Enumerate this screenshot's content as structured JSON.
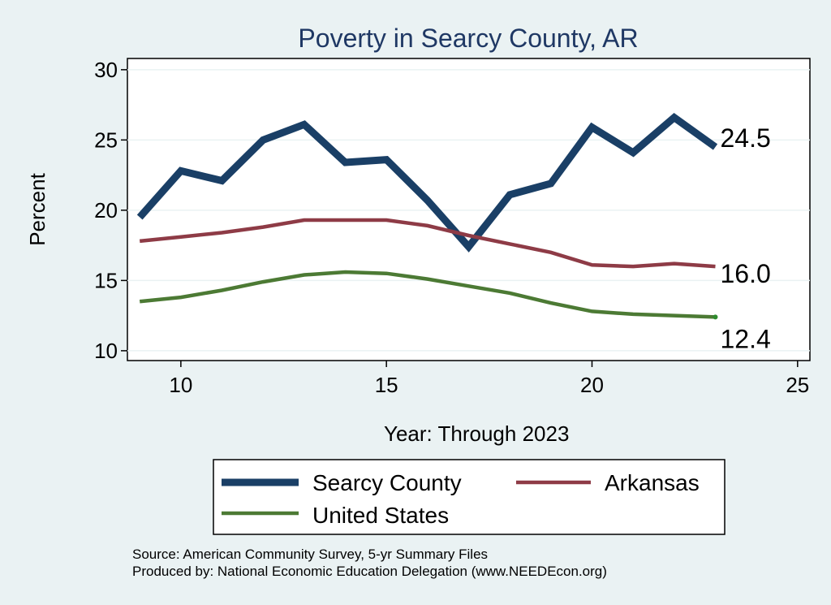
{
  "chart_data": {
    "type": "line",
    "title": "Poverty in Searcy County, AR",
    "xlabel": "Year: Through 2023",
    "ylabel": "Percent",
    "xlim": [
      8.7,
      25.3
    ],
    "ylim": [
      9.3,
      30.8
    ],
    "xticks": [
      10,
      15,
      20,
      25
    ],
    "yticks": [
      10,
      15,
      20,
      25,
      30
    ],
    "x": [
      9,
      10,
      11,
      12,
      13,
      14,
      15,
      16,
      17,
      18,
      19,
      20,
      21,
      22,
      23
    ],
    "series": [
      {
        "name": "Searcy County",
        "color": "#1a3f66",
        "values": [
          19.5,
          22.8,
          22.1,
          25.0,
          26.1,
          23.4,
          23.6,
          20.7,
          17.4,
          21.1,
          21.9,
          25.9,
          24.1,
          26.6,
          24.5
        ],
        "end_label": "24.5"
      },
      {
        "name": "Arkansas",
        "color": "#8e3b46",
        "values": [
          17.8,
          18.1,
          18.4,
          18.8,
          19.3,
          19.3,
          19.3,
          18.9,
          18.2,
          17.6,
          17.0,
          16.1,
          16.0,
          16.2,
          16.0
        ],
        "end_label": "16.0"
      },
      {
        "name": "United States",
        "color": "#4c7a34",
        "values": [
          13.5,
          13.8,
          14.3,
          14.9,
          15.4,
          15.6,
          15.5,
          15.1,
          14.6,
          14.1,
          13.4,
          12.8,
          12.6,
          12.5,
          12.4
        ],
        "end_label": "12.4"
      }
    ],
    "legend_position": "bottom"
  },
  "footer": {
    "source": "Source: American Community Survey, 5-yr Summary Files",
    "produced_by": "Produced by: National Economic Education Delegation (www.NEEDEcon.org)"
  }
}
